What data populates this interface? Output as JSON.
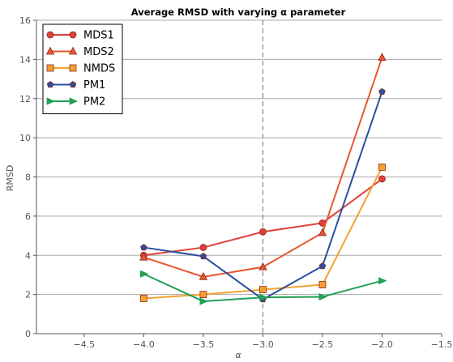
{
  "chart_data": {
    "type": "line",
    "title": "Average RMSD with varying α parameter",
    "xlabel": "α",
    "ylabel": "RMSD",
    "xlim": [
      -4.9,
      -1.5
    ],
    "ylim": [
      0,
      16
    ],
    "xticks": [
      "−4.5",
      "−4.0",
      "−3.5",
      "−3.0",
      "−2.5",
      "−2.0",
      "−1.5"
    ],
    "xtick_values": [
      -4.5,
      -4.0,
      -3.5,
      -3.0,
      -2.5,
      -2.0,
      -1.5
    ],
    "yticks": [
      "0",
      "2",
      "4",
      "6",
      "8",
      "10",
      "12",
      "14",
      "16"
    ],
    "ytick_values": [
      0,
      2,
      4,
      6,
      8,
      10,
      12,
      14,
      16
    ],
    "grid": "horizontal",
    "reference_line": {
      "x": -3.0,
      "style": "dashed",
      "color": "#888888"
    },
    "legend_position": "top-left",
    "x": [
      -4.0,
      -3.5,
      -3.0,
      -2.5,
      -2.0
    ],
    "series": [
      {
        "name": "MDS1",
        "marker": "circle",
        "color": "#e0403a",
        "values": [
          4.0,
          4.4,
          5.2,
          5.65,
          7.9
        ]
      },
      {
        "name": "MDS2",
        "marker": "triangle",
        "color": "#e8562f",
        "values": [
          3.9,
          2.9,
          3.4,
          5.15,
          14.1
        ]
      },
      {
        "name": "NMDS",
        "marker": "square",
        "color": "#f5a030",
        "values": [
          1.8,
          2.0,
          2.25,
          2.5,
          8.5
        ]
      },
      {
        "name": "PM1",
        "marker": "pentagon",
        "color": "#2b4fa0",
        "values": [
          4.4,
          3.95,
          1.75,
          3.45,
          12.35
        ]
      },
      {
        "name": "PM2",
        "marker": "triangle-right",
        "color": "#22a055",
        "values": [
          3.05,
          1.65,
          1.85,
          1.88,
          2.7
        ]
      }
    ]
  }
}
